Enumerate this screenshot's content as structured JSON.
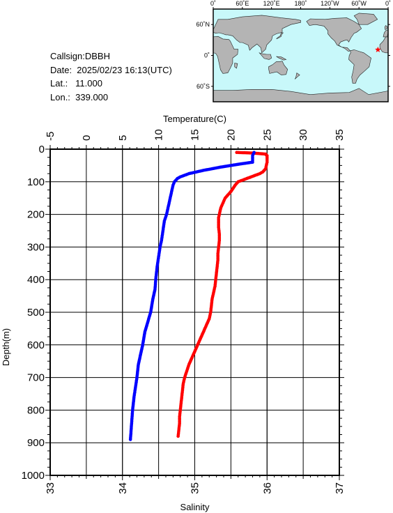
{
  "station": {
    "callsign_line": "Callsign:DBBH",
    "date_line": "Date:  2025/02/23 16:13(UTC)",
    "lat_line": "Lat.:   11.000",
    "lon_line": "Lon.:  339.000"
  },
  "map": {
    "lon_labels": [
      "0˚",
      "60˚E",
      "120˚E",
      "180˚",
      "120˚W",
      "60˚W",
      "0˚"
    ],
    "lat_labels": [
      "60˚N",
      "0˚",
      "60˚S"
    ],
    "ocean_color": "#c8f8fa",
    "land_color": "#b4b4b4",
    "marker": {
      "lon": 339.0,
      "lat": 11.0,
      "color": "#ff0000"
    }
  },
  "chart_data": {
    "type": "line",
    "ylabel": "Depth(m)",
    "ylim": [
      0,
      1000
    ],
    "y_inverted": true,
    "yticks": [
      "0",
      "100",
      "200",
      "300",
      "400",
      "500",
      "600",
      "700",
      "800",
      "900",
      "1000"
    ],
    "top_axis": {
      "label": "Temperature(C)",
      "range": [
        -5,
        35
      ],
      "ticks": [
        "-5",
        "0",
        "5",
        "10",
        "15",
        "20",
        "25",
        "30",
        "35"
      ]
    },
    "bottom_axis": {
      "label": "Salinity",
      "range": [
        33,
        37
      ],
      "ticks": [
        "33",
        "34",
        "35",
        "36",
        "37"
      ]
    },
    "grid": true,
    "series": [
      {
        "axis": "temperature",
        "color": "#ff0000",
        "depth": [
          10,
          12,
          15,
          18,
          20,
          25,
          30,
          40,
          50,
          60,
          70,
          75,
          80,
          85,
          90,
          95,
          100,
          110,
          120,
          130,
          140,
          150,
          160,
          170,
          180,
          190,
          200,
          210,
          220,
          240,
          260,
          280,
          300,
          320,
          340,
          360,
          380,
          400,
          420,
          440,
          460,
          480,
          500,
          520,
          540,
          560,
          580,
          600,
          620,
          640,
          660,
          680,
          700,
          720,
          740,
          760,
          780,
          800,
          820,
          840,
          860,
          880
        ],
        "values": [
          20.8,
          23.0,
          24.8,
          24.9,
          25.0,
          25.0,
          25.0,
          25.0,
          24.9,
          24.8,
          24.4,
          24.0,
          23.4,
          22.8,
          22.2,
          21.6,
          21.0,
          20.6,
          20.3,
          20.0,
          19.6,
          19.2,
          19.0,
          18.8,
          18.6,
          18.5,
          18.4,
          18.3,
          18.3,
          18.3,
          18.4,
          18.4,
          18.3,
          18.2,
          18.2,
          18.1,
          18.0,
          17.9,
          17.8,
          17.6,
          17.4,
          17.3,
          17.2,
          17.0,
          16.6,
          16.2,
          15.8,
          15.4,
          15.0,
          14.6,
          14.2,
          13.9,
          13.6,
          13.4,
          13.3,
          13.2,
          13.1,
          13.0,
          12.9,
          12.9,
          12.8,
          12.7
        ]
      },
      {
        "axis": "salinity",
        "color": "#0000ff",
        "depth": [
          10,
          15,
          20,
          30,
          40,
          45,
          50,
          55,
          60,
          65,
          70,
          75,
          80,
          85,
          90,
          100,
          110,
          120,
          130,
          140,
          150,
          160,
          180,
          200,
          220,
          250,
          280,
          300,
          330,
          360,
          400,
          430,
          460,
          500,
          530,
          560,
          600,
          630,
          660,
          700,
          730,
          760,
          800,
          830,
          860,
          890
        ],
        "values": [
          35.82,
          35.81,
          35.8,
          35.8,
          35.8,
          35.64,
          35.5,
          35.36,
          35.24,
          35.12,
          35.02,
          34.92,
          34.86,
          34.8,
          34.76,
          34.72,
          34.7,
          34.69,
          34.68,
          34.67,
          34.66,
          34.65,
          34.63,
          34.61,
          34.58,
          34.56,
          34.54,
          34.52,
          34.5,
          34.48,
          34.46,
          34.45,
          34.42,
          34.39,
          34.35,
          34.31,
          34.28,
          34.25,
          34.22,
          34.2,
          34.18,
          34.16,
          34.14,
          34.13,
          34.12,
          34.11
        ]
      }
    ]
  }
}
